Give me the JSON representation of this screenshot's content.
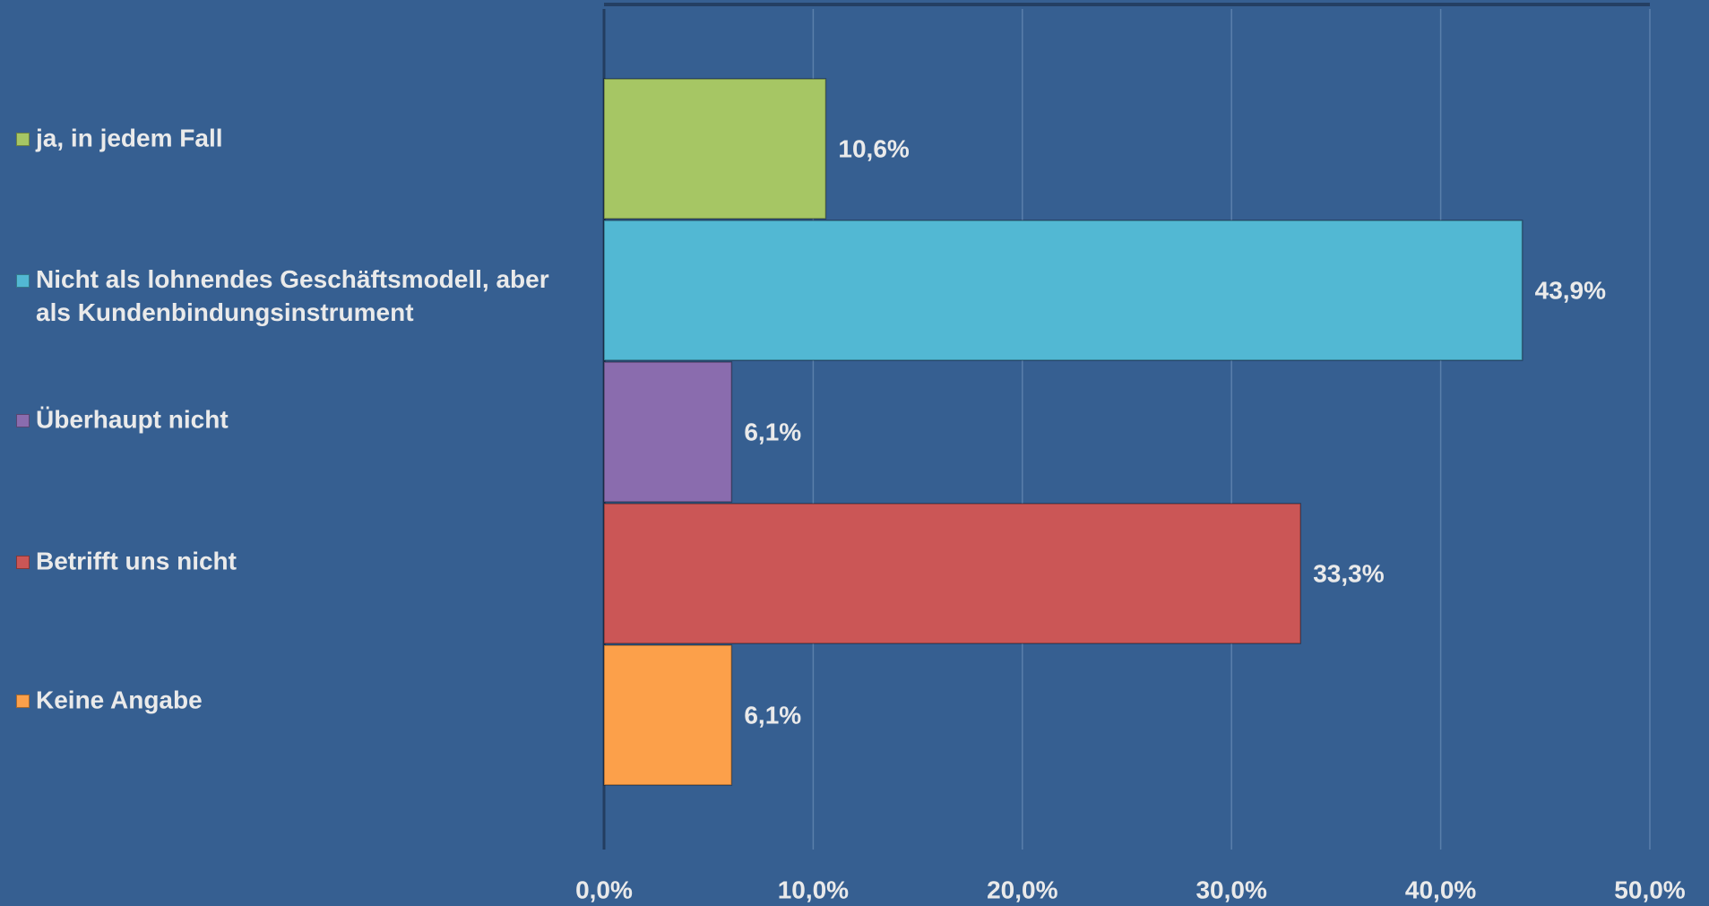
{
  "chart_data": {
    "type": "bar",
    "orientation": "horizontal",
    "categories": [
      "ja, in jedem Fall",
      "Nicht als lohnendes Geschäftsmodell, aber als Kundenbindungsinstrument",
      "Überhaupt nicht",
      "Betrifft uns nicht",
      "Keine Angabe"
    ],
    "values": [
      10.6,
      43.9,
      6.1,
      33.3,
      6.1
    ],
    "value_labels": [
      "10,6%",
      "43,9%",
      "6,1%",
      "33,3%",
      "6,1%"
    ],
    "colors": [
      "#a6c664",
      "#52b8d3",
      "#8a6cae",
      "#cb5656",
      "#fca04a"
    ],
    "xlim": [
      0,
      50
    ],
    "xticks": [
      {
        "value": 0,
        "label": "0,0%"
      },
      {
        "value": 10,
        "label": "10,0%"
      },
      {
        "value": 20,
        "label": "20,0%"
      },
      {
        "value": 30,
        "label": "30,0%"
      },
      {
        "value": 40,
        "label": "40,0%"
      },
      {
        "value": 50,
        "label": "50,0%"
      }
    ],
    "grid": true,
    "legend": "left"
  }
}
